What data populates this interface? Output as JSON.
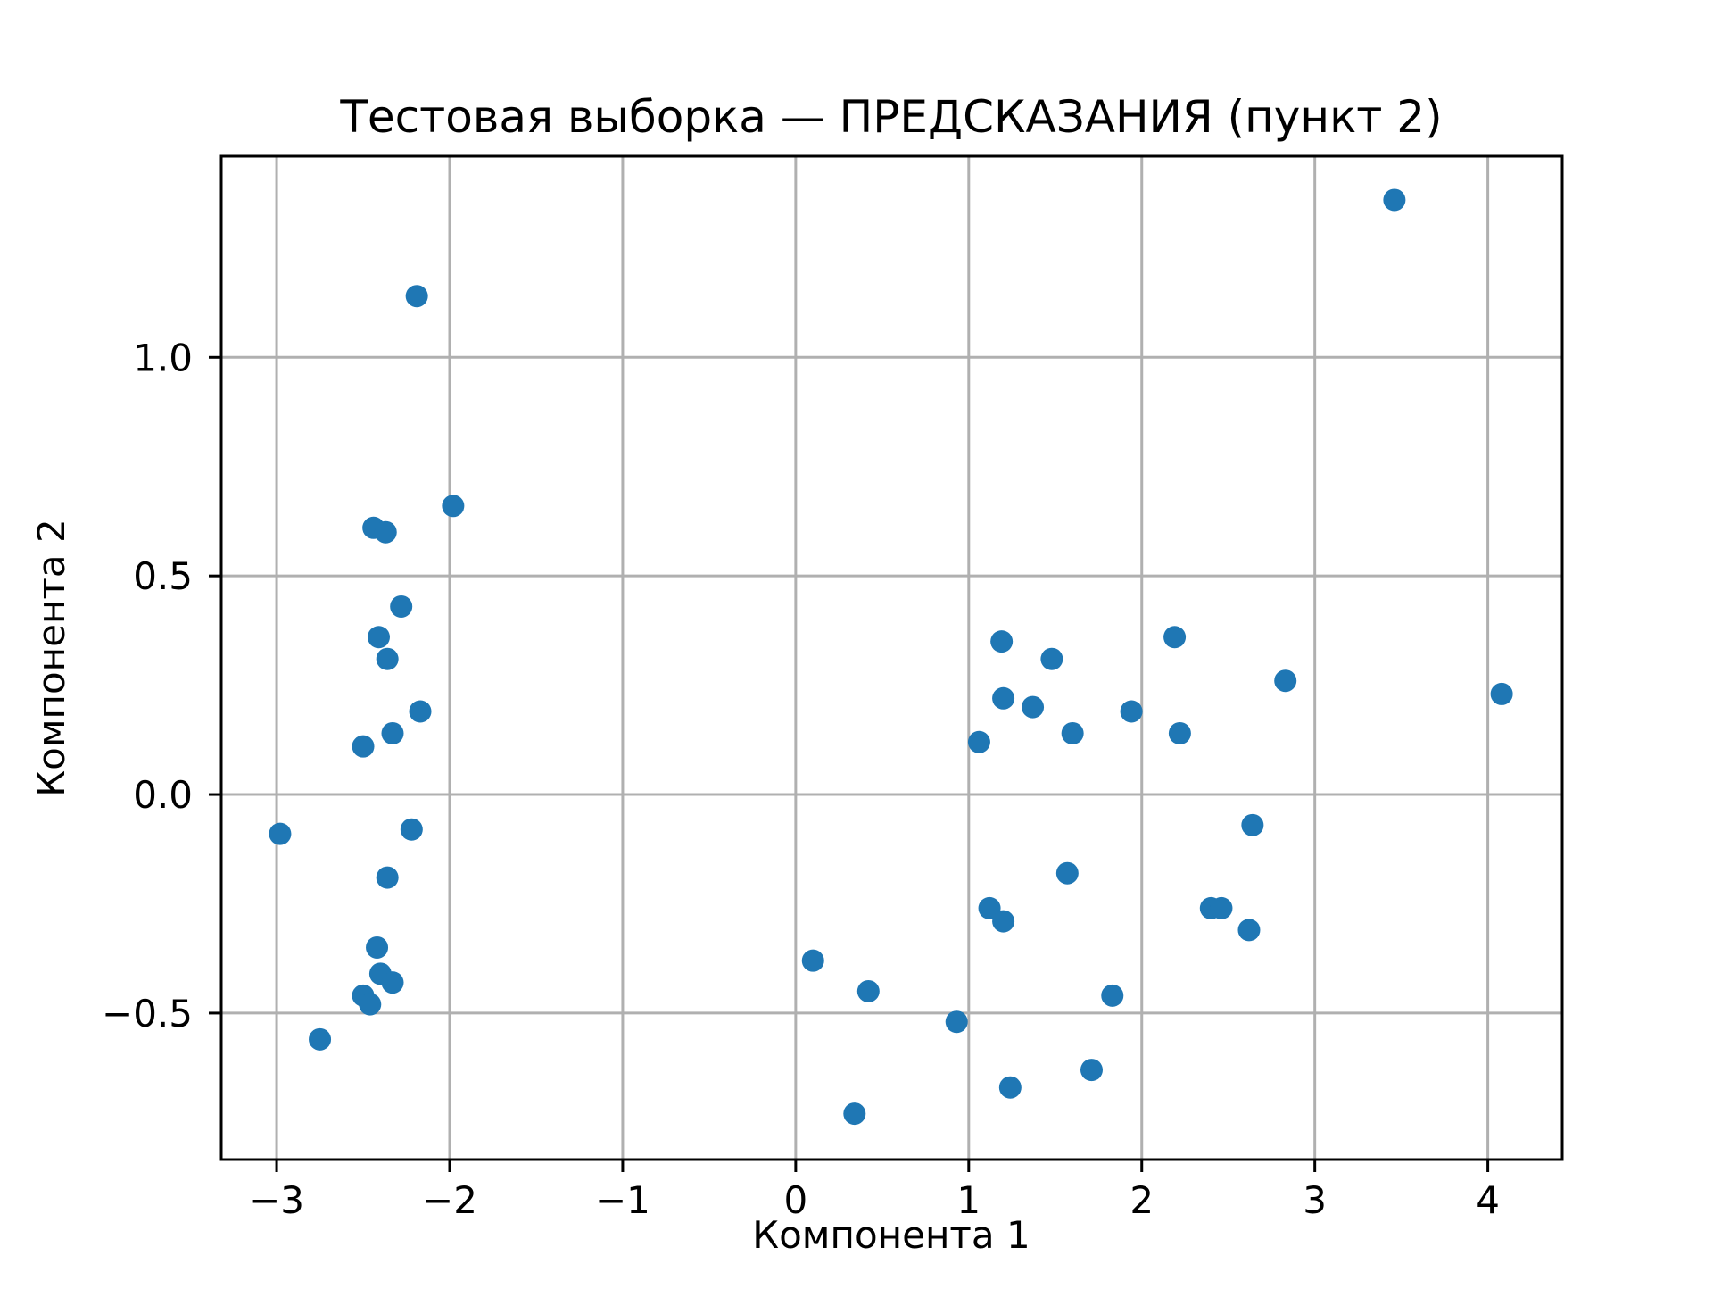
{
  "chart_data": {
    "type": "scatter",
    "title": "Тестовая выборка — ПРЕДСКАЗАНИЯ (пункт 2)",
    "xlabel": "Компонента 1",
    "ylabel": "Компонента 2",
    "xlim": [
      -3.32,
      4.43
    ],
    "ylim": [
      -0.835,
      1.46
    ],
    "xticks": {
      "values": [
        -3,
        -2,
        -1,
        0,
        1,
        2,
        3,
        4
      ],
      "labels": [
        "−3",
        "−2",
        "−1",
        "0",
        "1",
        "2",
        "3",
        "4"
      ]
    },
    "yticks": {
      "values": [
        -0.5,
        0.0,
        0.5,
        1.0
      ],
      "labels": [
        "−0.5",
        "0.0",
        "0.5",
        "1.0"
      ]
    },
    "grid": true,
    "legend": "none",
    "grid_color": "#b0b0b0",
    "axes_color": "#000000",
    "marker": {
      "color": "#1f77b4",
      "radius_px": 12.5
    },
    "points": [
      [
        -2.98,
        -0.09
      ],
      [
        -2.75,
        -0.56
      ],
      [
        -2.5,
        0.11
      ],
      [
        -2.44,
        0.61
      ],
      [
        -2.37,
        0.6
      ],
      [
        -2.41,
        0.36
      ],
      [
        -2.36,
        0.31
      ],
      [
        -2.28,
        0.43
      ],
      [
        -2.33,
        0.14
      ],
      [
        -2.17,
        0.19
      ],
      [
        -2.19,
        1.14
      ],
      [
        -1.98,
        0.66
      ],
      [
        -2.22,
        -0.08
      ],
      [
        -2.36,
        -0.19
      ],
      [
        -2.42,
        -0.35
      ],
      [
        -2.4,
        -0.41
      ],
      [
        -2.33,
        -0.43
      ],
      [
        -2.5,
        -0.46
      ],
      [
        -2.46,
        -0.48
      ],
      [
        0.1,
        -0.38
      ],
      [
        0.42,
        -0.45
      ],
      [
        0.34,
        -0.73
      ],
      [
        0.93,
        -0.52
      ],
      [
        1.06,
        0.12
      ],
      [
        1.19,
        0.35
      ],
      [
        1.2,
        0.22
      ],
      [
        1.37,
        0.2
      ],
      [
        1.48,
        0.31
      ],
      [
        1.6,
        0.14
      ],
      [
        1.12,
        -0.26
      ],
      [
        1.2,
        -0.29
      ],
      [
        1.57,
        -0.18
      ],
      [
        1.24,
        -0.67
      ],
      [
        1.71,
        -0.63
      ],
      [
        1.83,
        -0.46
      ],
      [
        1.94,
        0.19
      ],
      [
        2.19,
        0.36
      ],
      [
        2.22,
        0.14
      ],
      [
        2.4,
        -0.26
      ],
      [
        2.46,
        -0.26
      ],
      [
        2.62,
        -0.31
      ],
      [
        2.64,
        -0.07
      ],
      [
        2.83,
        0.26
      ],
      [
        3.46,
        1.36
      ],
      [
        4.08,
        0.23
      ]
    ]
  }
}
